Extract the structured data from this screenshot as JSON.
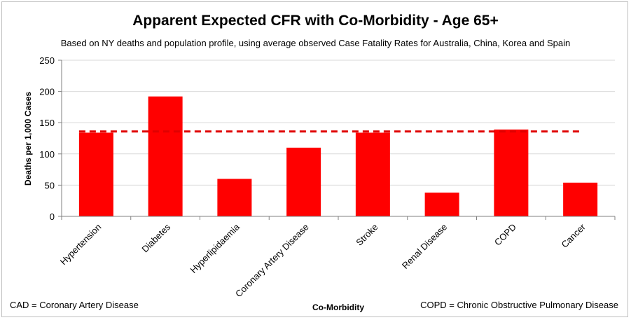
{
  "chart_data": {
    "type": "bar",
    "title": "Apparent Expected CFR with Co-Morbidity - Age 65+",
    "subtitle": "Based on NY deaths and population profile, using average observed Case Fatality Rates for Australia, China, Korea and Spain",
    "xlabel": "Co-Morbidity",
    "ylabel": "Deaths per 1,000 Cases",
    "ylim": [
      0,
      250
    ],
    "yticks": [
      0,
      50,
      100,
      150,
      200,
      250
    ],
    "categories": [
      "Hypertension",
      "Diabetes",
      "Hyperlipidaemia",
      "Coronary Artery Disease",
      "Stroke",
      "Renal Disease",
      "COPD",
      "Cancer"
    ],
    "values": [
      134,
      192,
      60,
      110,
      134,
      38,
      139,
      54
    ],
    "reference_line": {
      "value": 136,
      "style": "dashed"
    },
    "grid": true,
    "bar_color": "#ff0000",
    "line_color": "#e00000"
  },
  "footnotes": {
    "left": "CAD = Coronary Artery Disease",
    "right": "COPD = Chronic Obstructive Pulmonary Disease"
  }
}
